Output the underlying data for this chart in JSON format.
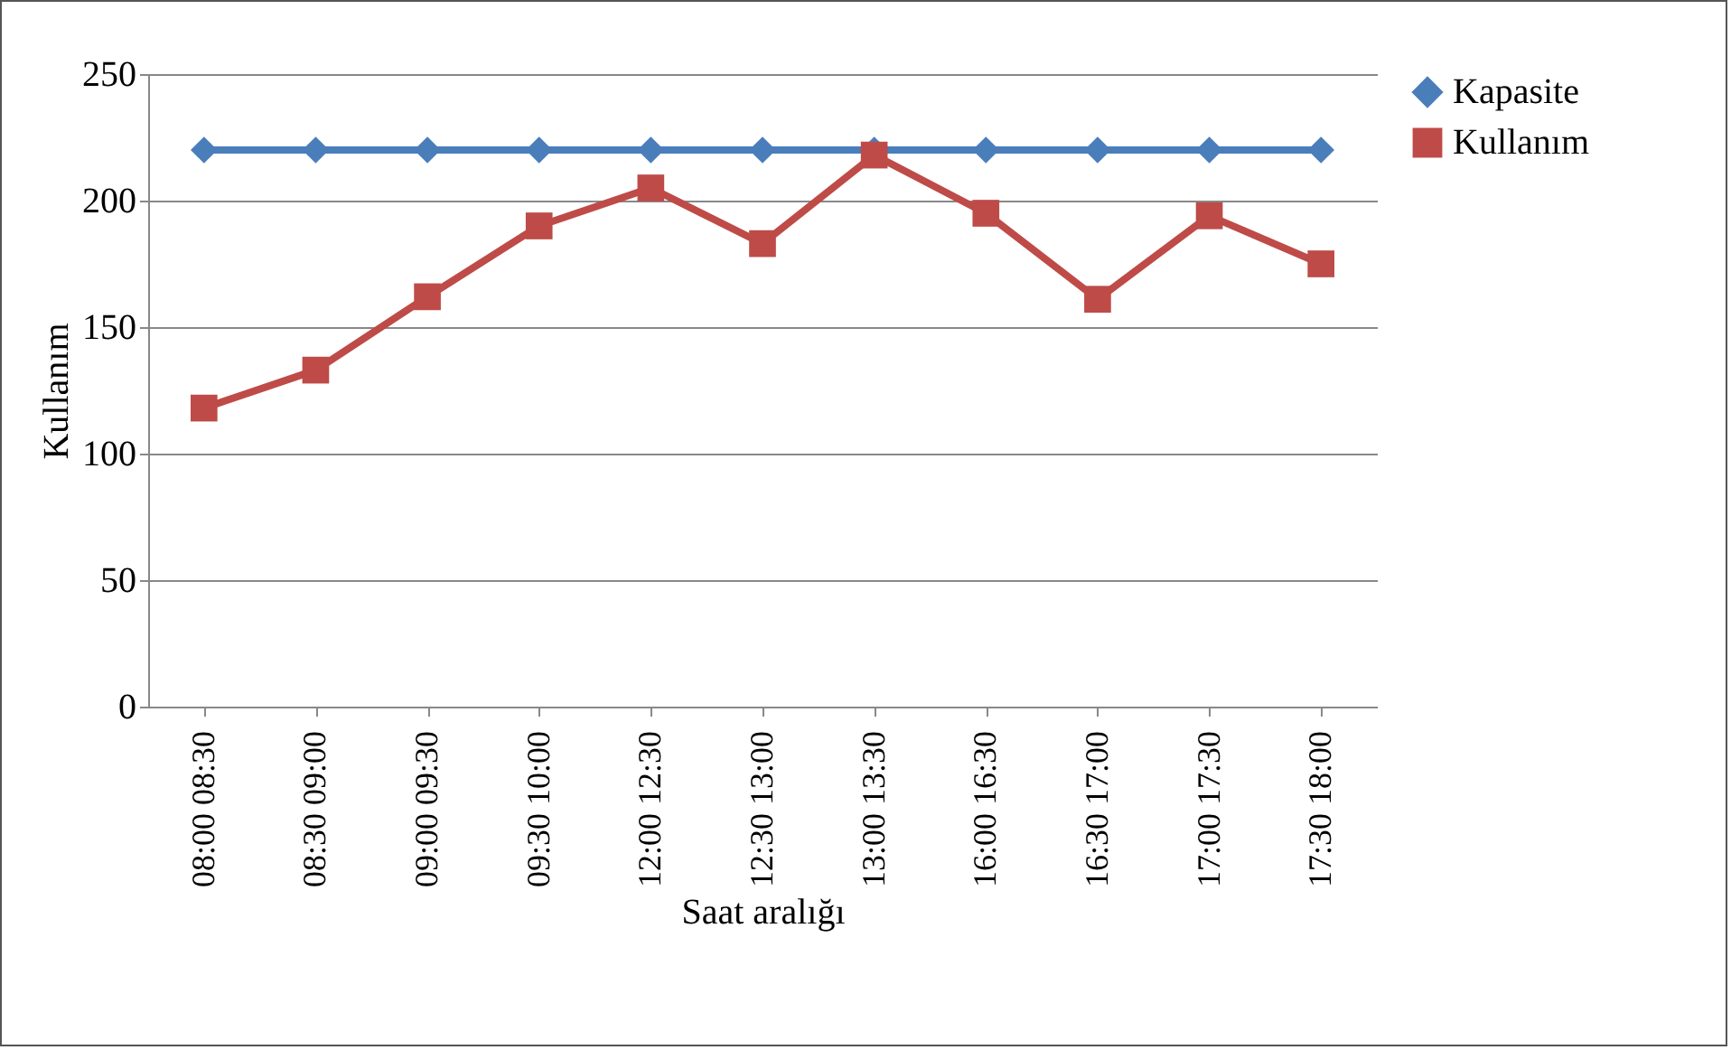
{
  "chart_data": {
    "type": "line",
    "xlabel": "Saat aralığı",
    "ylabel": "Kullanım",
    "categories": [
      "08:00 08:30",
      "08:30 09:00",
      "09:00 09:30",
      "09:30 10:00",
      "12:00 12:30",
      "12:30 13:00",
      "13:00 13:30",
      "16:00 16:30",
      "16:30 17:00",
      "17:00 17:30",
      "17:30 18:00"
    ],
    "series": [
      {
        "name": "Kapasite",
        "color": "#4a7ebb",
        "marker": "diamond",
        "values": [
          220,
          220,
          220,
          220,
          220,
          220,
          220,
          220,
          220,
          220,
          220
        ]
      },
      {
        "name": "Kullanım",
        "color": "#be4b48",
        "marker": "square",
        "values": [
          118,
          133,
          162,
          190,
          205,
          183,
          218,
          195,
          161,
          194,
          175
        ]
      }
    ],
    "ylim": [
      0,
      250
    ],
    "yticks": [
      0,
      50,
      100,
      150,
      200,
      250
    ],
    "grid": "y",
    "legend": "right"
  }
}
